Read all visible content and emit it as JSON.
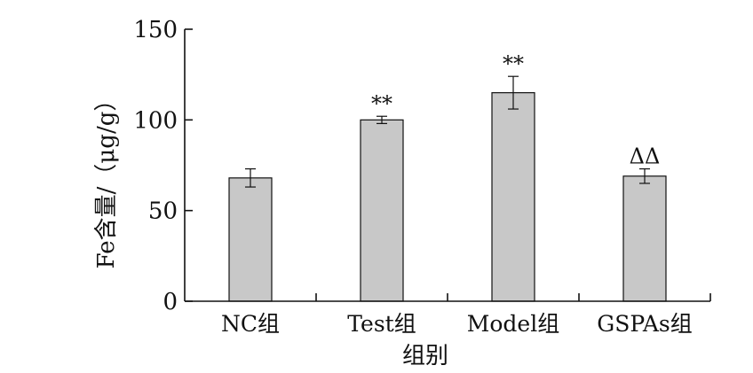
{
  "chart_data": {
    "type": "bar",
    "xlabel": "组别",
    "ylabel": "Fe含量/（μg/g）",
    "ylim": [
      0,
      150
    ],
    "yticks": [
      0,
      50,
      100,
      150
    ],
    "categories": [
      "NC组",
      "Test组",
      "Model组",
      "GSPAs组"
    ],
    "values": [
      68,
      100,
      115,
      69
    ],
    "errors": [
      5,
      2,
      9,
      4
    ],
    "annotations": [
      "",
      "**",
      "**",
      "ΔΔ"
    ],
    "grid": false,
    "bar_color": "#c8c8c8"
  }
}
